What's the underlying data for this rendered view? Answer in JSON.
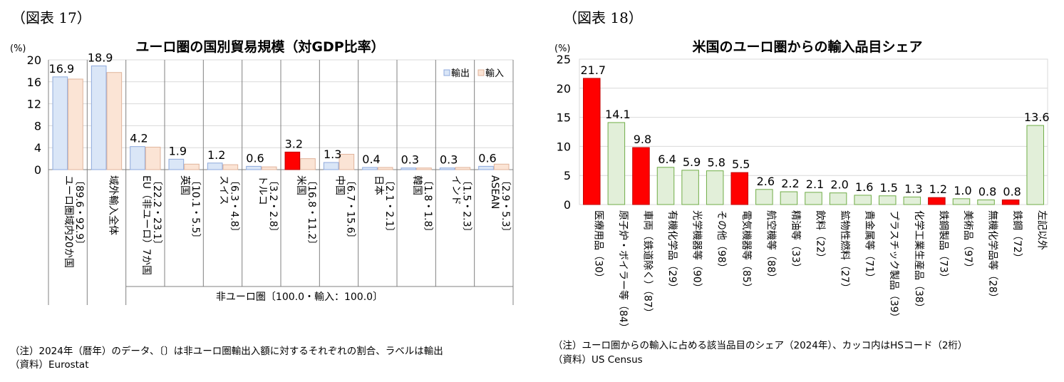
{
  "colors": {
    "export_fill": "#dae6f7",
    "export_stroke": "#8faadc",
    "import_fill": "#fbe4d5",
    "import_stroke": "#e0b49c",
    "highlight_fill": "#ff0000",
    "highlight_stroke": "#c00000",
    "green_fill": "#e2efd9",
    "green_stroke": "#70ad47",
    "grid": "#d9d9d9",
    "axis": "#808080"
  },
  "left": {
    "figure_label": "（図表 17）",
    "unit": "(%)",
    "group_label": "非ユーロ圏〔100.0・輸入：100.0〕",
    "note": "（注）2024年（暦年）のデータ、〔〕は非ユーロ圏輸出入額に対するそれぞれの割合、ラベルは輸出",
    "source": "（資料）Eurostat",
    "chart_data": {
      "type": "bar",
      "title": "ユーロ圏の国別貿易規模（対GDP比率）",
      "ylabel": "(%)",
      "ylim": [
        0,
        20
      ],
      "yticks": [
        0,
        4,
        8,
        12,
        16,
        20
      ],
      "legend_position": "top-right",
      "categories": [
        {
          "name": "ユーロ圏域内20か国",
          "sub": "〔89.6・92.9〕"
        },
        {
          "name": "域外輸入全体",
          "sub": ""
        },
        {
          "name": "EU（非ユーロ）7か国",
          "sub": "〔22.2・23.1〕"
        },
        {
          "name": "英国",
          "sub": "〔10.1・5.5〕"
        },
        {
          "name": "スイス",
          "sub": "〔6.3・4.8〕"
        },
        {
          "name": "トルコ",
          "sub": "〔3.2・2.8〕"
        },
        {
          "name": "米国",
          "sub": "〔16.8・11.2〕"
        },
        {
          "name": "中国",
          "sub": "〔6.7・15.6〕"
        },
        {
          "name": "日本",
          "sub": "〔2.1・2.1〕"
        },
        {
          "name": "韓国",
          "sub": "〔1.8・1.8〕"
        },
        {
          "name": "インド",
          "sub": "〔1.5・2.3〕"
        },
        {
          "name": "ASEAN",
          "sub": "〔2.9・5.3〕"
        }
      ],
      "series": [
        {
          "name": "輸出",
          "values": [
            16.9,
            18.9,
            4.2,
            1.9,
            1.2,
            0.6,
            3.2,
            1.3,
            0.4,
            0.3,
            0.3,
            0.6
          ]
        },
        {
          "name": "輸入",
          "values": [
            16.5,
            17.7,
            4.1,
            1.0,
            0.9,
            0.5,
            2.0,
            2.8,
            0.4,
            0.3,
            0.4,
            1.0
          ]
        }
      ],
      "data_labels": [
        "16.9",
        "18.9",
        "4.2",
        "1.9",
        "1.2",
        "0.6",
        "3.2",
        "1.3",
        "0.4",
        "0.3",
        "0.3",
        "0.6"
      ],
      "highlight_index": 6
    }
  },
  "right": {
    "figure_label": "（図表 18）",
    "unit": "(%)",
    "note": "（注）ユーロ圏からの輸入に占める該当品目のシェア（2024年）、カッコ内はHSコード（2桁）",
    "source": "（資料）US Census",
    "chart_data": {
      "type": "bar",
      "title": "米国のユーロ圏からの輸入品目シェア",
      "ylabel": "(%)",
      "ylim": [
        0,
        25
      ],
      "yticks": [
        0,
        5,
        10,
        15,
        20,
        25
      ],
      "categories": [
        "医療用品（30）",
        "原子炉・ボイラー等（84）",
        "車両（鉄道除く）（87）",
        "有機化学品（29）",
        "光学機器等（90）",
        "その他（98）",
        "電気機器等（85）",
        "航空機等（88）",
        "精油等（33）",
        "飲料（22）",
        "鉱物性燃料（27）",
        "貴金属等（71）",
        "プラスチック製品（39）",
        "化学工業生産品（38）",
        "鉄鋼製品（73）",
        "美術品（97）",
        "無機化学品等（28）",
        "鉄鋼（72）",
        "左記以外"
      ],
      "values": [
        21.7,
        14.1,
        9.8,
        6.4,
        5.9,
        5.8,
        5.5,
        2.6,
        2.2,
        2.1,
        2.0,
        1.6,
        1.5,
        1.3,
        1.2,
        1.0,
        0.8,
        0.8,
        13.6
      ],
      "data_labels": [
        "21.7",
        "14.1",
        "9.8",
        "6.4",
        "5.9",
        "5.8",
        "5.5",
        "2.6",
        "2.2",
        "2.1",
        "2.0",
        "1.6",
        "1.5",
        "1.3",
        "1.2",
        "1.0",
        "0.8",
        "0.8",
        "13.6"
      ],
      "highlight_indices": [
        0,
        2,
        6,
        14,
        17
      ]
    }
  }
}
